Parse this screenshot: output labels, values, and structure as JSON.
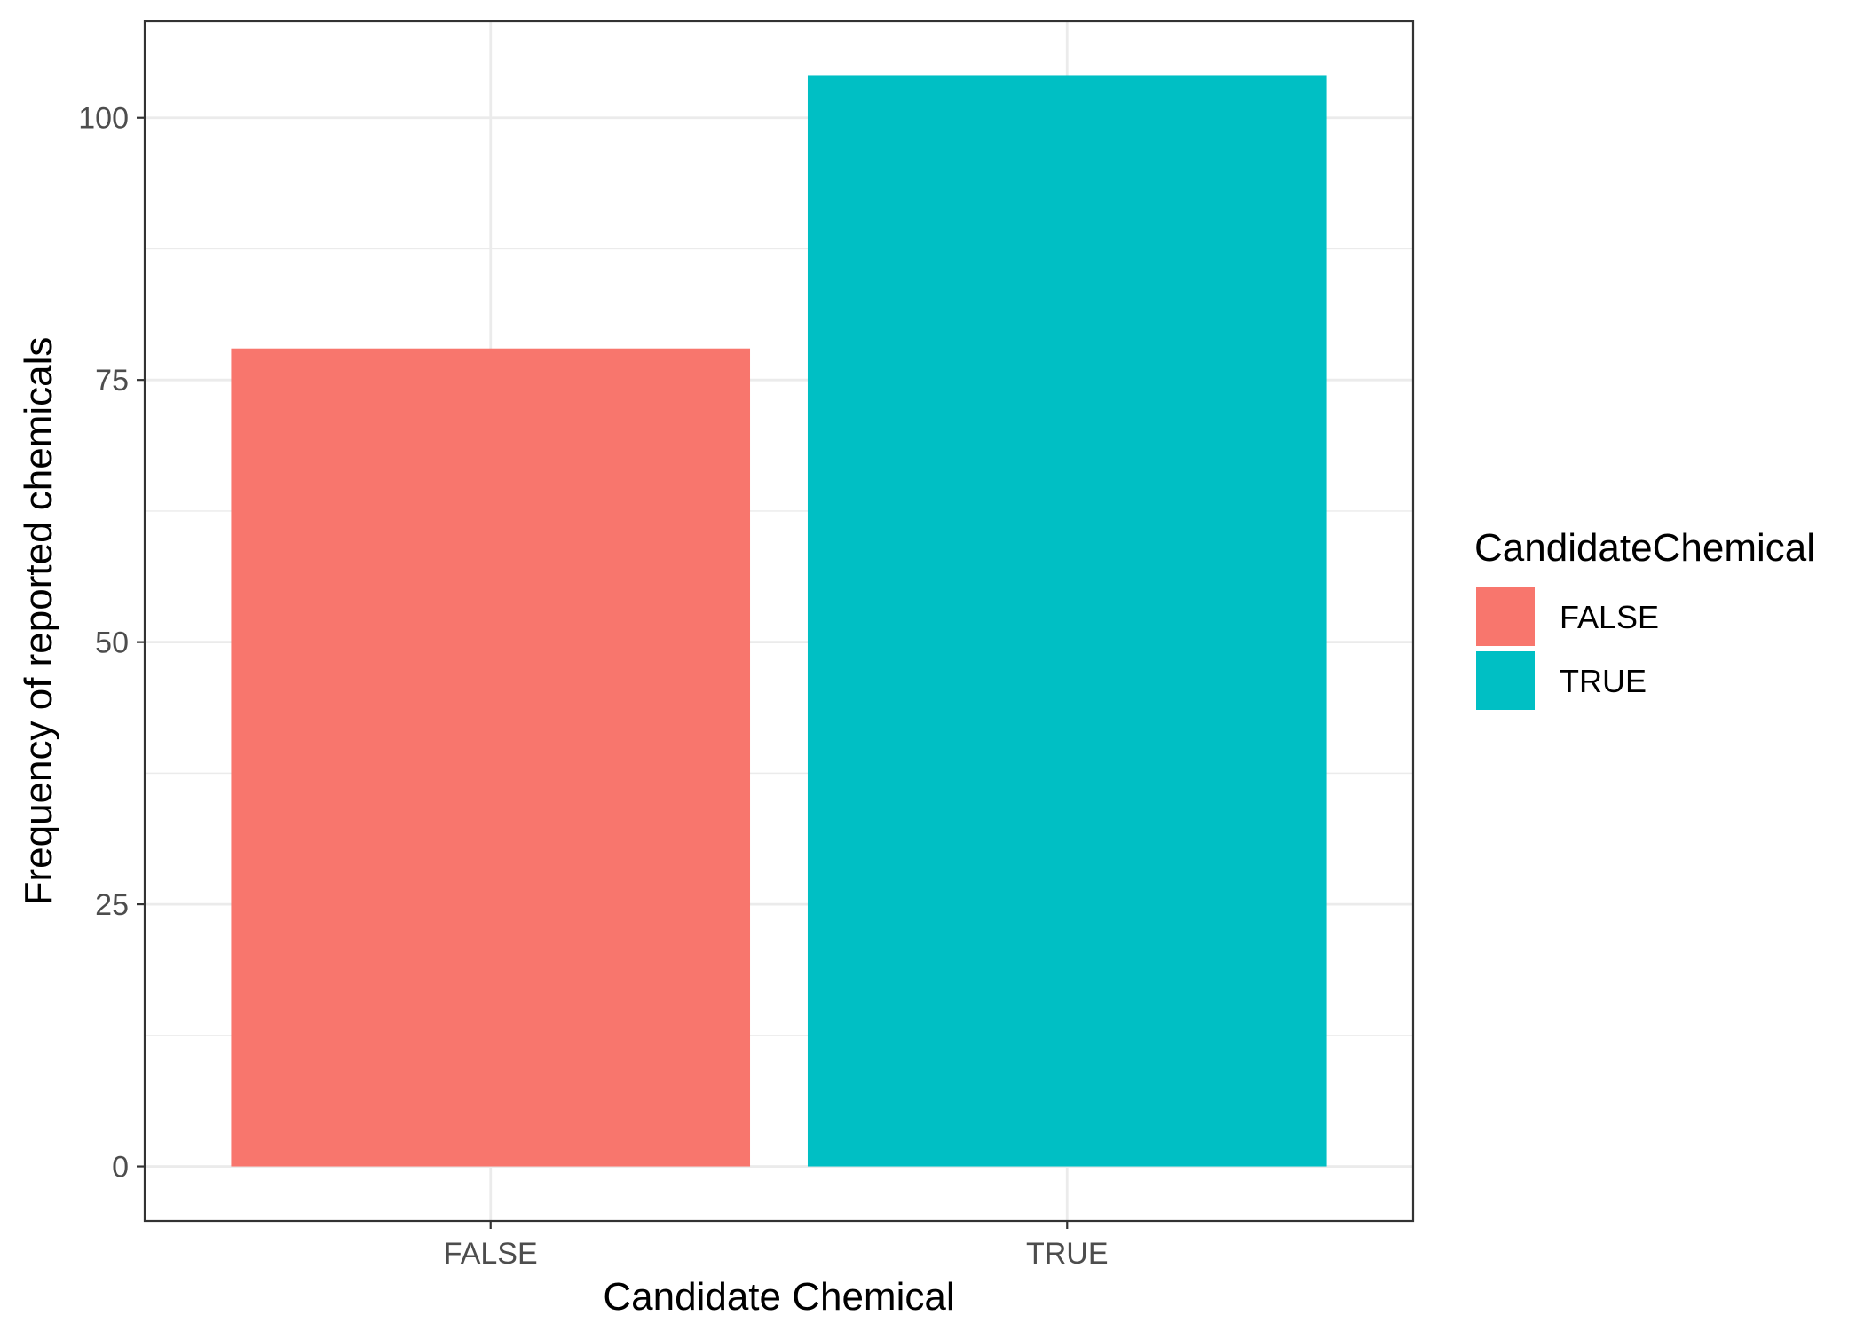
{
  "chart_data": {
    "type": "bar",
    "categories": [
      "FALSE",
      "TRUE"
    ],
    "values": [
      78,
      104
    ],
    "colors": [
      "#F8766D",
      "#00BFC4"
    ],
    "title": "",
    "xlabel": "Candidate Chemical",
    "ylabel": "Frequency of reported chemicals",
    "ylim": [
      -5.2,
      109.2
    ],
    "yticks": [
      0,
      25,
      50,
      75,
      100
    ],
    "yticks_minor": [
      12.5,
      37.5,
      62.5,
      87.5
    ],
    "grid": true,
    "legend": {
      "title": "CandidateChemical",
      "placement": "right",
      "entries": [
        {
          "label": "FALSE",
          "color": "#F8766D"
        },
        {
          "label": "TRUE",
          "color": "#00BFC4"
        }
      ]
    }
  }
}
